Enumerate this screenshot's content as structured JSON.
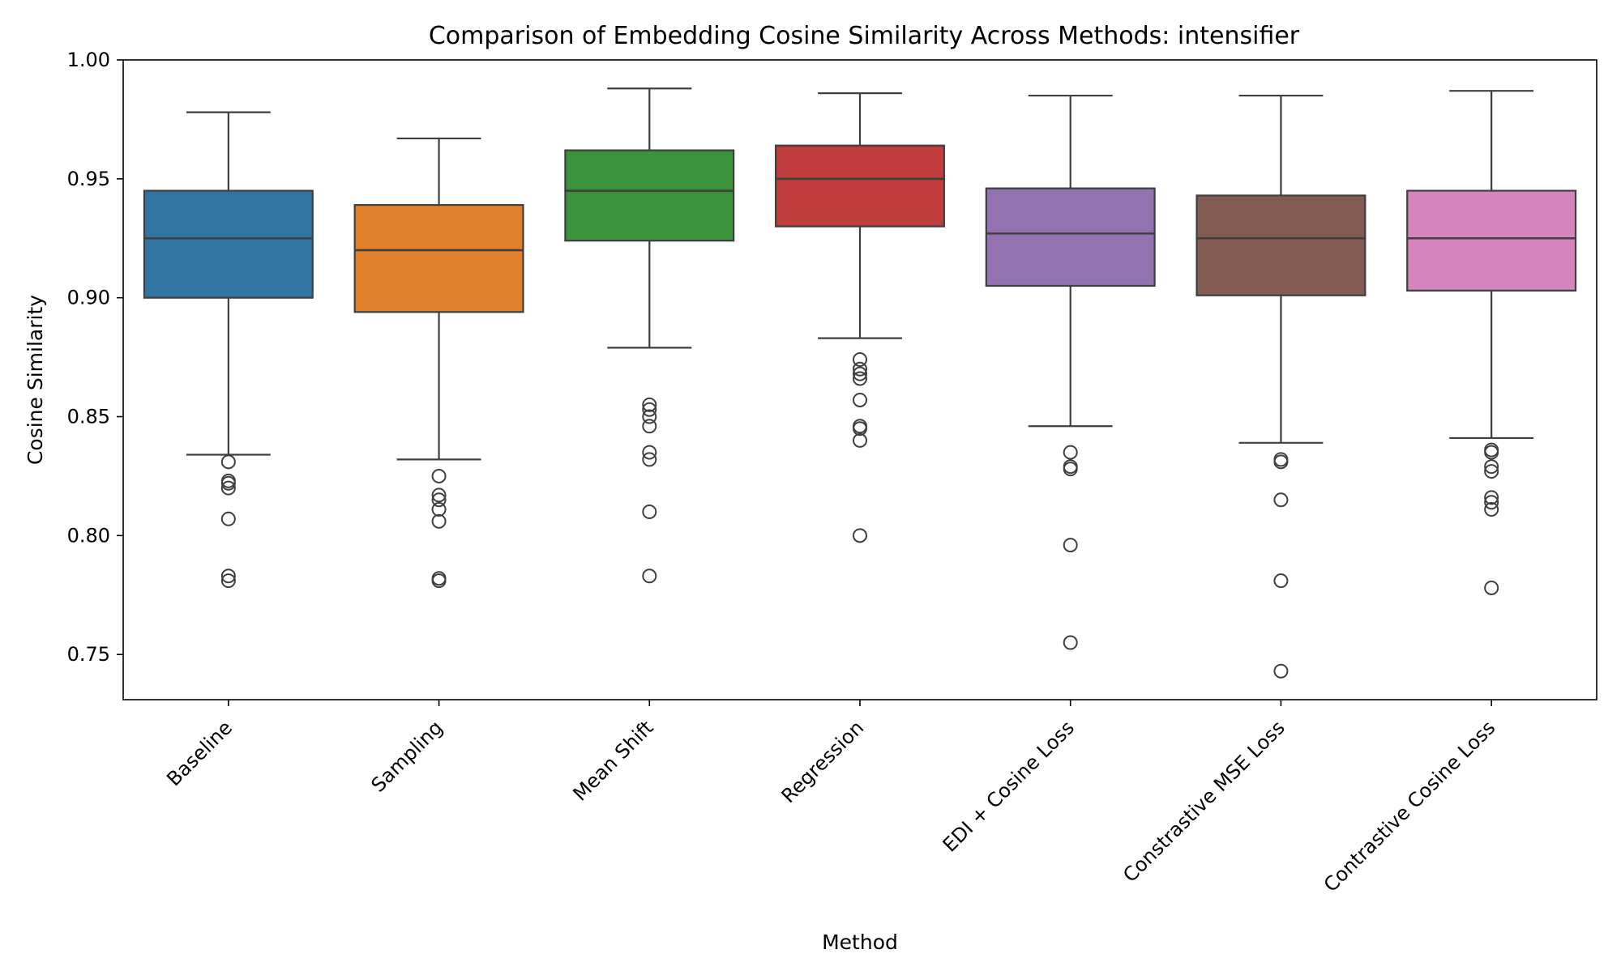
{
  "chart_data": {
    "type": "box",
    "title": "Comparison of Embedding Cosine Similarity Across Methods: intensifier",
    "xlabel": "Method",
    "ylabel": "Cosine Similarity",
    "ylim": [
      0.731,
      1.0
    ],
    "yticks": [
      "0.75",
      "0.80",
      "0.85",
      "0.90",
      "0.95",
      "1.00"
    ],
    "grid": false,
    "categories": [
      "Baseline",
      "Sampling",
      "Mean Shift",
      "Regression",
      "EDI + Cosine Loss",
      "Constrastive MSE Loss",
      "Contrastive Cosine Loss"
    ],
    "boxes": [
      {
        "category": "Baseline",
        "color": "#3274a1",
        "whisker_low": 0.834,
        "q1": 0.9,
        "median": 0.925,
        "q3": 0.945,
        "whisker_high": 0.978,
        "outliers": [
          0.831,
          0.823,
          0.822,
          0.82,
          0.807,
          0.783,
          0.781
        ]
      },
      {
        "category": "Sampling",
        "color": "#e1812c",
        "whisker_low": 0.832,
        "q1": 0.894,
        "median": 0.92,
        "q3": 0.939,
        "whisker_high": 0.967,
        "outliers": [
          0.825,
          0.817,
          0.815,
          0.811,
          0.806,
          0.782,
          0.781
        ]
      },
      {
        "category": "Mean Shift",
        "color": "#3a923a",
        "whisker_low": 0.879,
        "q1": 0.924,
        "median": 0.945,
        "q3": 0.962,
        "whisker_high": 0.988,
        "outliers": [
          0.855,
          0.853,
          0.85,
          0.846,
          0.835,
          0.832,
          0.81,
          0.783
        ]
      },
      {
        "category": "Regression",
        "color": "#c03d3e",
        "whisker_low": 0.883,
        "q1": 0.93,
        "median": 0.95,
        "q3": 0.964,
        "whisker_high": 0.986,
        "outliers": [
          0.874,
          0.87,
          0.868,
          0.866,
          0.857,
          0.846,
          0.845,
          0.84,
          0.8
        ]
      },
      {
        "category": "EDI + Cosine Loss",
        "color": "#9372b2",
        "whisker_low": 0.846,
        "q1": 0.905,
        "median": 0.927,
        "q3": 0.946,
        "whisker_high": 0.985,
        "outliers": [
          0.835,
          0.829,
          0.828,
          0.796,
          0.755
        ]
      },
      {
        "category": "Constrastive MSE Loss",
        "color": "#845b53",
        "whisker_low": 0.839,
        "q1": 0.901,
        "median": 0.925,
        "q3": 0.943,
        "whisker_high": 0.985,
        "outliers": [
          0.832,
          0.831,
          0.815,
          0.781,
          0.743
        ]
      },
      {
        "category": "Contrastive Cosine Loss",
        "color": "#d684bd",
        "whisker_low": 0.841,
        "q1": 0.903,
        "median": 0.925,
        "q3": 0.945,
        "whisker_high": 0.987,
        "outliers": [
          0.836,
          0.835,
          0.829,
          0.827,
          0.816,
          0.814,
          0.811,
          0.778
        ]
      }
    ]
  }
}
